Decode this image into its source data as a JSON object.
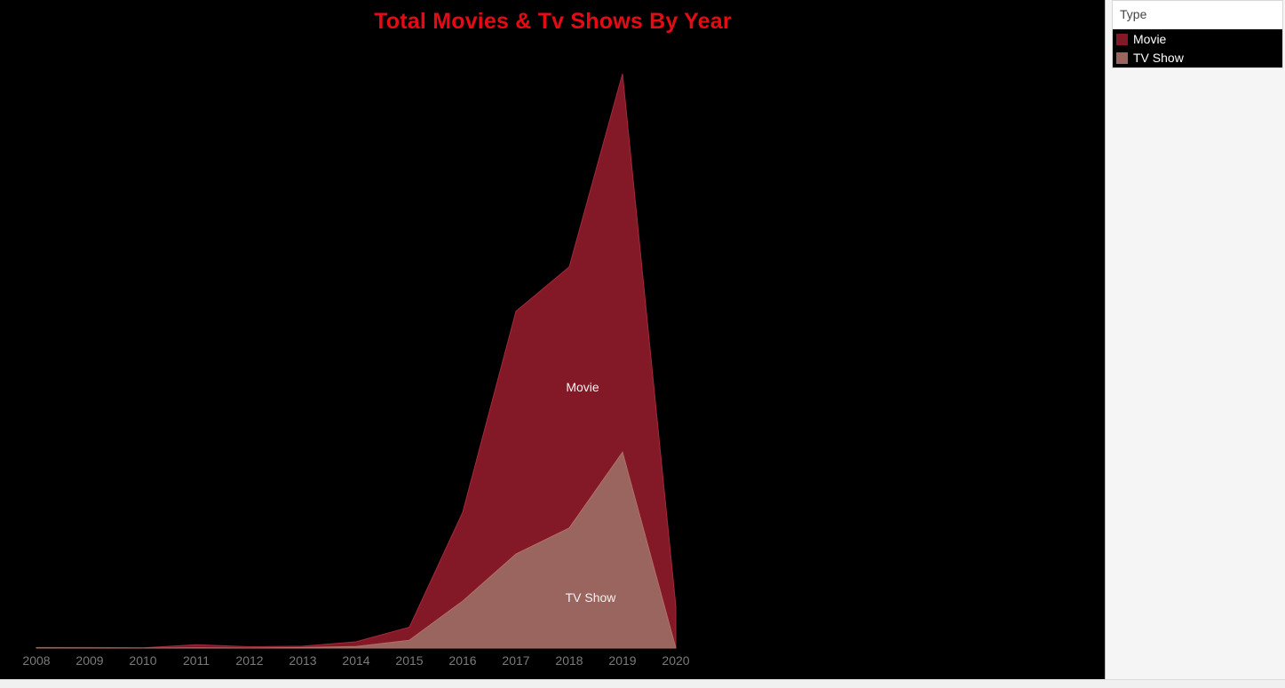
{
  "chart_data": {
    "type": "area",
    "title": "Total Movies & Tv Shows By Year",
    "xlabel": "",
    "ylabel": "",
    "stacked": true,
    "categories": [
      "2008",
      "2009",
      "2010",
      "2011",
      "2012",
      "2013",
      "2014",
      "2015",
      "2016",
      "2017",
      "2018",
      "2019",
      "2020"
    ],
    "ylim": [
      0,
      2200
    ],
    "grid": false,
    "legend_position": "right",
    "series": [
      {
        "name": "TV Show",
        "color": "#9b655f",
        "values": [
          1,
          0,
          0,
          1,
          0,
          2,
          6,
          30,
          180,
          360,
          460,
          750,
          0
        ]
      },
      {
        "name": "Movie",
        "color": "#831927",
        "values": [
          1,
          2,
          1,
          12,
          5,
          5,
          18,
          50,
          340,
          930,
          1000,
          1450,
          160
        ]
      }
    ],
    "mark_labels": [
      "Movie",
      "TV Show"
    ]
  },
  "legend": {
    "title": "Type",
    "items": [
      {
        "label": "Movie",
        "color": "#831927"
      },
      {
        "label": "TV Show",
        "color": "#9b655f"
      }
    ]
  },
  "colors": {
    "background": "#000000",
    "title": "#e60a14",
    "axis_text": "#7a7a7a"
  }
}
